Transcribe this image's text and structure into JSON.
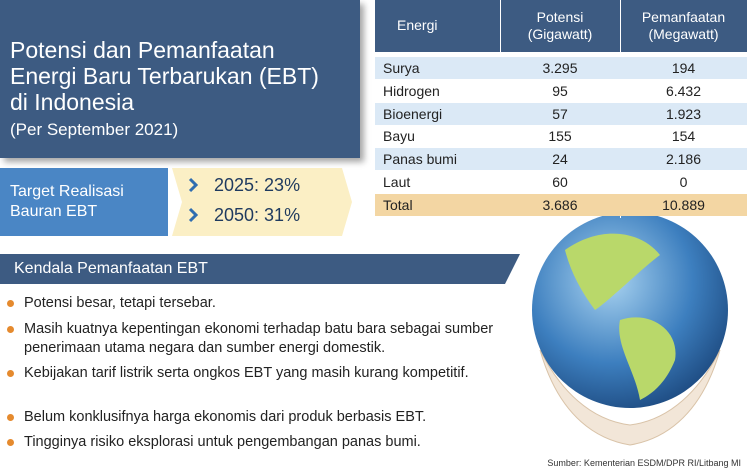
{
  "header": {
    "title_lines": [
      "Potensi dan Pemanfaatan",
      "Energi Baru Terbarukan (EBT)",
      "di Indonesia"
    ],
    "subtitle": "(Per September 2021)"
  },
  "target": {
    "label_lines": [
      "Target Realisasi",
      "Bauran EBT"
    ],
    "items": [
      "2025: 23%",
      "2050: 31%"
    ]
  },
  "table": {
    "headers": [
      [
        "Energi"
      ],
      [
        "Potensi",
        "(Gigawatt)"
      ],
      [
        "Pemanfaatan",
        "(Megawatt)"
      ]
    ],
    "rows": [
      [
        "Surya",
        "3.295",
        "194"
      ],
      [
        "Hidrogen",
        "95",
        "6.432"
      ],
      [
        "Bioenergi",
        "57",
        "1.923"
      ],
      [
        "Bayu",
        "155",
        "154"
      ],
      [
        "Panas bumi",
        "24",
        "2.186"
      ],
      [
        "Laut",
        "60",
        "0"
      ]
    ],
    "total": [
      "Total",
      "3.686",
      "10.889"
    ]
  },
  "kendala": {
    "title": "Kendala Pemanfaatan EBT",
    "items": [
      "Potensi besar, tetapi tersebar.",
      "Masih kuatnya kepentingan ekonomi terhadap batu bara sebagai sumber penerimaan utama negara dan sumber energi domestik.",
      "Kebijakan tarif listrik serta ongkos EBT yang masih kurang kompetitif.",
      "Belum konklusifnya harga ekonomis dari produk berbasis EBT.",
      "Tingginya risiko eksplorasi untuk pengembangan panas bumi."
    ]
  },
  "source": "Sumber: Kementerian ESDM/DPR RI/Litbang MI"
}
